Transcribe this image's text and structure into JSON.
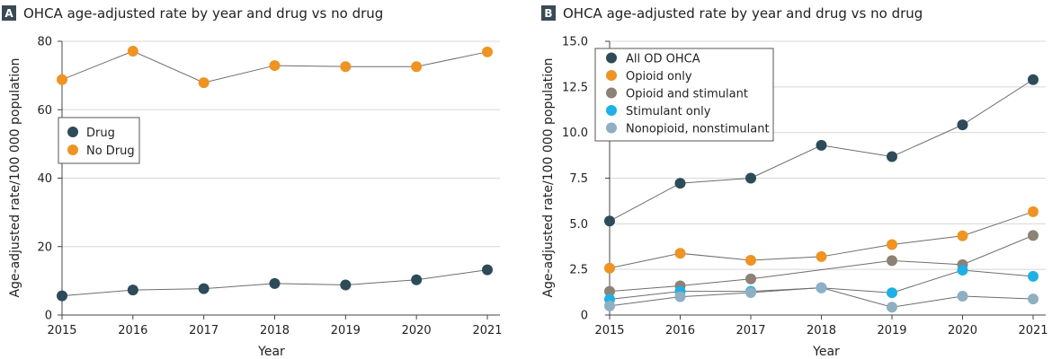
{
  "colors": {
    "drug": "#2d4b59",
    "no_drug": "#ef9323",
    "all_od": "#2d4b59",
    "opioid_only": "#ef9323",
    "opioid_stim": "#8c8275",
    "stim_only": "#1fb0e5",
    "nonopioid": "#8fafc3",
    "line": "#6d6d6d",
    "grid": "#d8d8d8",
    "axis": "#444444"
  },
  "chart_data": [
    {
      "type": "line",
      "panel": "A",
      "title": "OHCA age-adjusted rate by year and drug vs no drug",
      "xlabel": "Year",
      "ylabel": "Age-adjusted rate/100 000 population",
      "x": [
        2015,
        2016,
        2017,
        2018,
        2019,
        2020,
        2021
      ],
      "x_tick_labels": [
        "2015",
        "2016",
        "2017",
        "2018",
        "2019",
        "2020",
        "2021"
      ],
      "ylim": [
        0,
        80
      ],
      "y_ticks": [
        0,
        20,
        40,
        60,
        80
      ],
      "y_tick_labels": [
        "0",
        "20",
        "40",
        "60",
        "80"
      ],
      "grid": "horizontal",
      "legend_position": "left",
      "series": [
        {
          "name": "Drug",
          "color": "#2d4b59",
          "values": [
            5.6,
            7.3,
            7.7,
            9.2,
            8.8,
            10.3,
            13.2
          ]
        },
        {
          "name": "No Drug",
          "color": "#ef9323",
          "values": [
            68.8,
            77.1,
            67.9,
            72.9,
            72.6,
            72.6,
            76.9
          ]
        }
      ]
    },
    {
      "type": "line",
      "panel": "B",
      "title": "OHCA age-adjusted rate by year and drug vs no drug",
      "xlabel": "Year",
      "ylabel": "Age-adjusted rate/100 000 population",
      "x": [
        2015,
        2016,
        2017,
        2018,
        2019,
        2020,
        2021
      ],
      "x_tick_labels": [
        "2015",
        "2016",
        "2017",
        "2018",
        "2019",
        "2020",
        "2021"
      ],
      "ylim": [
        0,
        15
      ],
      "y_ticks": [
        0,
        2.5,
        5,
        7.5,
        10,
        12.5,
        15
      ],
      "y_tick_labels": [
        "0",
        "2.5",
        "5.0",
        "7.5",
        "10.0",
        "12.5",
        "15.0"
      ],
      "grid": "horizontal",
      "legend_position": "top-left",
      "series": [
        {
          "name": "All OD OHCA",
          "color": "#2d4b59",
          "values": [
            5.15,
            7.22,
            7.5,
            9.3,
            8.68,
            10.42,
            12.9
          ]
        },
        {
          "name": "Opioid only",
          "color": "#ef9323",
          "values": [
            2.57,
            3.38,
            3.0,
            3.2,
            3.86,
            4.34,
            5.66
          ]
        },
        {
          "name": "Opioid and stimulant",
          "color": "#8c8275",
          "values": [
            1.3,
            1.6,
            1.98,
            null,
            2.98,
            2.76,
            4.36
          ]
        },
        {
          "name": "Stimulant only",
          "color": "#1fb0e5",
          "values": [
            0.86,
            1.3,
            1.3,
            1.49,
            1.22,
            2.46,
            2.12
          ]
        },
        {
          "name": "Nonopioid, nonstimulant",
          "color": "#8fafc3",
          "values": [
            0.5,
            1.0,
            1.23,
            1.5,
            0.43,
            1.03,
            0.88
          ]
        }
      ]
    }
  ]
}
